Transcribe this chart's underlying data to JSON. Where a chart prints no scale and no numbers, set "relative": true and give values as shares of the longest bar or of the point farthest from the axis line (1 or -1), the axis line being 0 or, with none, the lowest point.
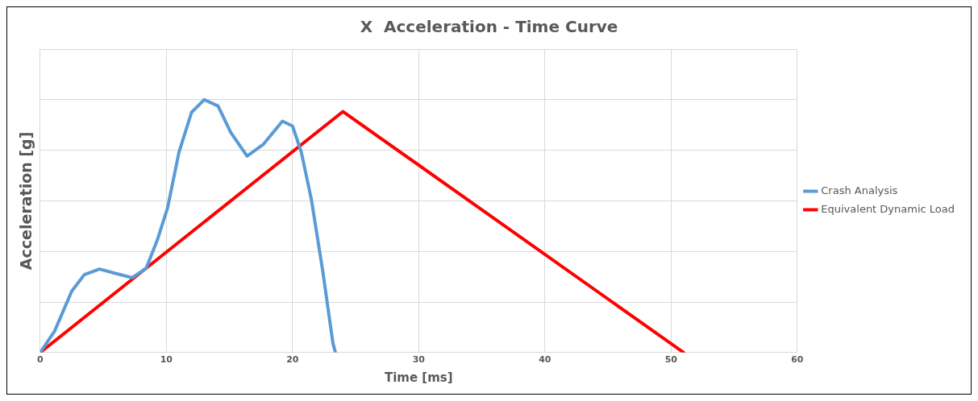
{
  "chart_data": {
    "type": "line",
    "title": "X  Acceleration - Time Curve",
    "xlabel": "Time [ms]",
    "ylabel": "Acceleration [g]",
    "relative": true,
    "xlim": [
      0,
      60
    ],
    "xticks": [
      0,
      10,
      20,
      30,
      40,
      50,
      60
    ],
    "grid": true,
    "legend": "right",
    "marker": "none",
    "line_style": "solid",
    "series": [
      {
        "name": "Crash Analysis",
        "color": "#5b9bd5",
        "x": [
          0,
          1.15,
          2.5,
          3.5,
          4.7,
          5.9,
          7.3,
          8.4,
          9.3,
          10.1,
          11.0,
          12.0,
          13.0,
          14.1,
          15.1,
          16.4,
          17.7,
          19.2,
          20.0,
          20.7,
          21.5,
          22.4,
          23.2,
          23.4
        ],
        "values": [
          0,
          0.085,
          0.242,
          0.308,
          0.33,
          0.314,
          0.296,
          0.333,
          0.447,
          0.572,
          0.792,
          0.95,
          1,
          0.975,
          0.871,
          0.777,
          0.824,
          0.915,
          0.896,
          0.792,
          0.604,
          0.321,
          0.038,
          0
        ]
      },
      {
        "name": "Equivalent Dynamic Load",
        "color": "#ff0000",
        "x": [
          0,
          24,
          51
        ],
        "values": [
          0,
          0.953,
          0
        ]
      }
    ]
  }
}
